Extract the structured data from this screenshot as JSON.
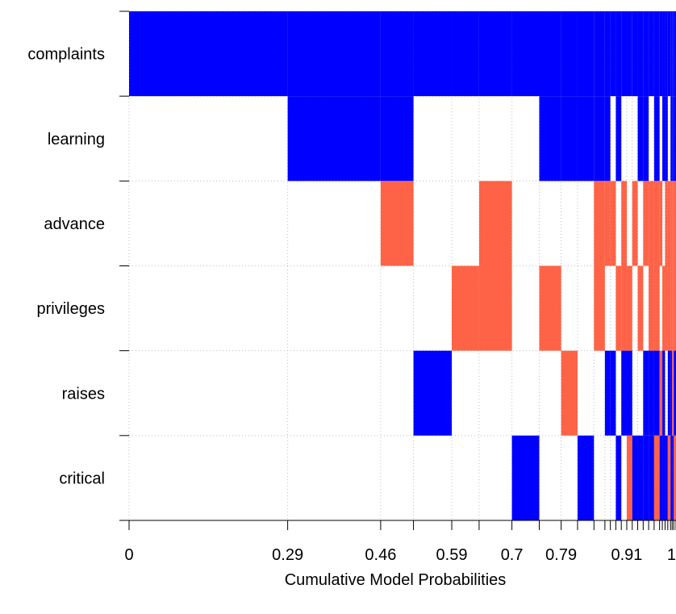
{
  "chart_data": {
    "type": "heatmap",
    "title": "",
    "xlabel": "Cumulative Model Probabilities",
    "ylabel": "",
    "xlim": [
      0,
      1
    ],
    "grid": true,
    "variables": [
      "complaints",
      "learning",
      "advance",
      "privileges",
      "raises",
      "critical"
    ],
    "x_tick_labels": [
      "0",
      "0.29",
      "0.46",
      "0.59",
      "0.7",
      "0.79",
      "0.91",
      "1"
    ],
    "colors": {
      "positive": "#0000ff",
      "negative": "#ff6347",
      "excluded": "#ffffff"
    },
    "model_boundaries": [
      0,
      0.29,
      0.46,
      0.52,
      0.59,
      0.64,
      0.7,
      0.75,
      0.79,
      0.82,
      0.85,
      0.87,
      0.88,
      0.89,
      0.9,
      0.91,
      0.92,
      0.93,
      0.94,
      0.95,
      0.96,
      0.97,
      0.975,
      0.98,
      0.985,
      0.99,
      0.993,
      0.996,
      1.0
    ],
    "models": [
      {
        "complaints": 1,
        "learning": 0,
        "advance": 0,
        "privileges": 0,
        "raises": 0,
        "critical": 0
      },
      {
        "complaints": 1,
        "learning": 1,
        "advance": 0,
        "privileges": 0,
        "raises": 0,
        "critical": 0
      },
      {
        "complaints": 1,
        "learning": 1,
        "advance": -1,
        "privileges": 0,
        "raises": 0,
        "critical": 0
      },
      {
        "complaints": 1,
        "learning": 0,
        "advance": 0,
        "privileges": 0,
        "raises": 1,
        "critical": 0
      },
      {
        "complaints": 1,
        "learning": 0,
        "advance": 0,
        "privileges": -1,
        "raises": 0,
        "critical": 0
      },
      {
        "complaints": 1,
        "learning": 0,
        "advance": -1,
        "privileges": -1,
        "raises": 0,
        "critical": 0
      },
      {
        "complaints": 1,
        "learning": 0,
        "advance": 0,
        "privileges": 0,
        "raises": 0,
        "critical": 1
      },
      {
        "complaints": 1,
        "learning": 1,
        "advance": 0,
        "privileges": -1,
        "raises": 0,
        "critical": 0
      },
      {
        "complaints": 1,
        "learning": 1,
        "advance": 0,
        "privileges": 0,
        "raises": -1,
        "critical": 0
      },
      {
        "complaints": 1,
        "learning": 1,
        "advance": 0,
        "privileges": 0,
        "raises": 0,
        "critical": 1
      },
      {
        "complaints": 1,
        "learning": 1,
        "advance": -1,
        "privileges": -1,
        "raises": 0,
        "critical": 0
      },
      {
        "complaints": 1,
        "learning": 1,
        "advance": -1,
        "privileges": 0,
        "raises": 1,
        "critical": 0
      },
      {
        "complaints": 1,
        "learning": 0,
        "advance": -1,
        "privileges": 0,
        "raises": 1,
        "critical": 0
      },
      {
        "complaints": 1,
        "learning": 1,
        "advance": 0,
        "privileges": -1,
        "raises": 0,
        "critical": 1
      },
      {
        "complaints": 1,
        "learning": 0,
        "advance": -1,
        "privileges": -1,
        "raises": 1,
        "critical": 0
      },
      {
        "complaints": 1,
        "learning": 0,
        "advance": 0,
        "privileges": -1,
        "raises": 1,
        "critical": -1
      },
      {
        "complaints": 1,
        "learning": 0,
        "advance": -1,
        "privileges": 0,
        "raises": 0,
        "critical": 1
      },
      {
        "complaints": 1,
        "learning": 1,
        "advance": 0,
        "privileges": -1,
        "raises": 0,
        "critical": 1
      },
      {
        "complaints": 1,
        "learning": 1,
        "advance": -1,
        "privileges": 0,
        "raises": 1,
        "critical": 1
      },
      {
        "complaints": 1,
        "learning": 0,
        "advance": -1,
        "privileges": -1,
        "raises": 1,
        "critical": 1
      },
      {
        "complaints": 1,
        "learning": 1,
        "advance": -1,
        "privileges": -1,
        "raises": 1,
        "critical": -1
      },
      {
        "complaints": 1,
        "learning": 0,
        "advance": -1,
        "privileges": 0,
        "raises": -1,
        "critical": 1
      },
      {
        "complaints": 1,
        "learning": 1,
        "advance": 0,
        "privileges": -1,
        "raises": 1,
        "critical": 1
      },
      {
        "complaints": 1,
        "learning": 1,
        "advance": -1,
        "privileges": -1,
        "raises": 0,
        "critical": 1
      },
      {
        "complaints": 1,
        "learning": 0,
        "advance": -1,
        "privileges": -1,
        "raises": 1,
        "critical": -1
      },
      {
        "complaints": 1,
        "learning": 1,
        "advance": -1,
        "privileges": -1,
        "raises": 1,
        "critical": 1
      },
      {
        "complaints": 1,
        "learning": 1,
        "advance": -1,
        "privileges": -1,
        "raises": -1,
        "critical": 1
      },
      {
        "complaints": 1,
        "learning": 1,
        "advance": -1,
        "privileges": -1,
        "raises": 1,
        "critical": -1
      }
    ]
  }
}
